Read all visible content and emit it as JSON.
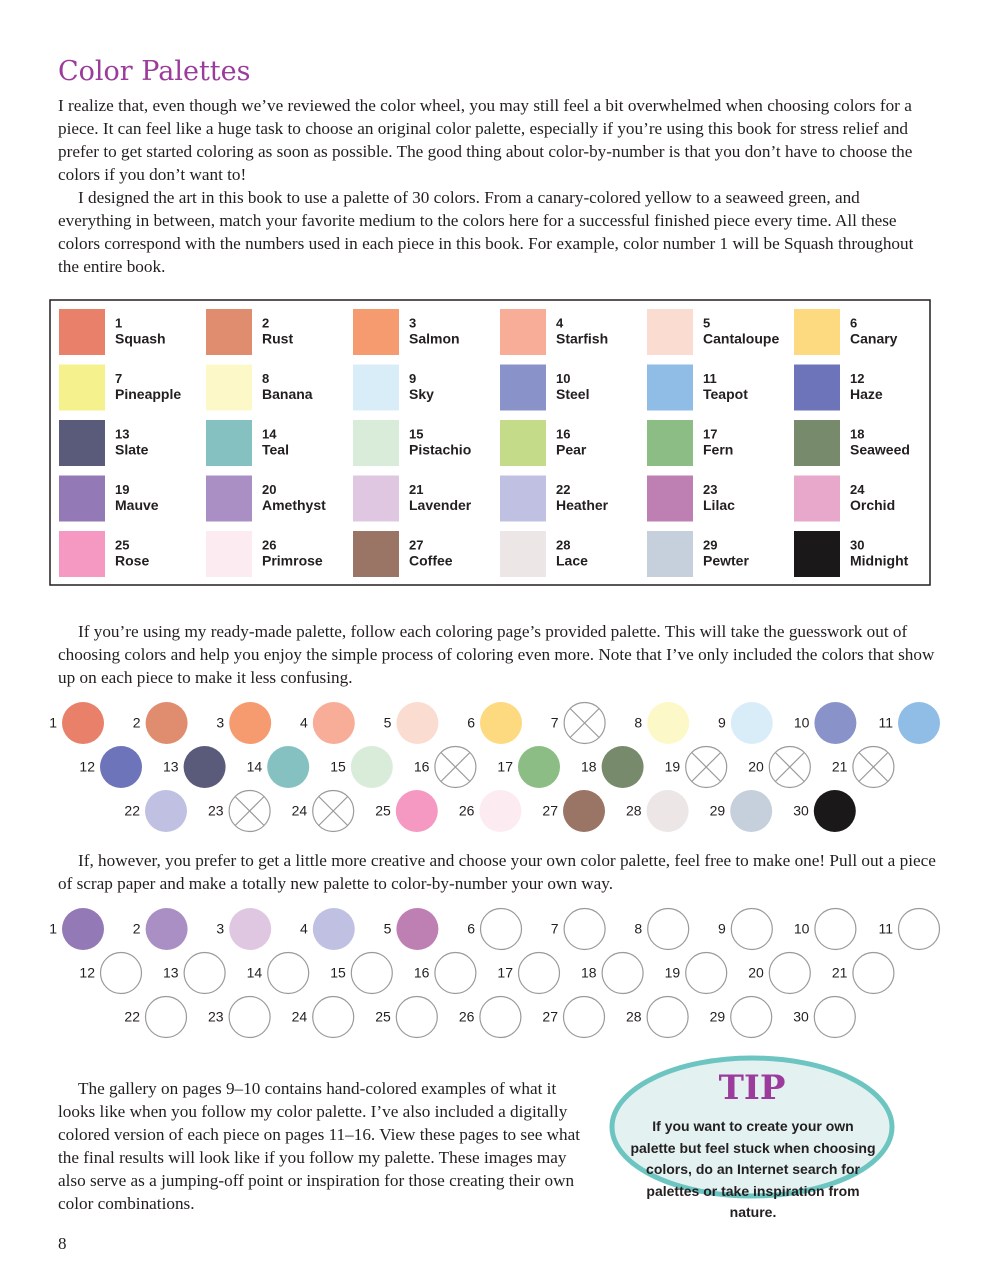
{
  "header": {
    "title": "Color Palettes"
  },
  "paragraphs": [
    "I realize that, even though we’ve reviewed the color wheel, you may still feel a bit overwhelmed when choosing colors for a piece. It can feel like a huge task to choose an original color palette, especially if you’re using this book for stress relief and prefer to get started coloring as soon as possible. The good thing about color-by-number is that you don’t have to choose the colors if you don’t want to!",
    "I designed the art in this book to use a palette of 30 colors. From a canary-colored yellow to a seaweed green, and everything in between, match your favorite medium to the colors here for a successful finished piece every time. All these colors correspond with the numbers used in each piece in this book. For example, color number 1 will be Squash throughout the entire book.",
    "If you’re using my ready-made palette, follow each coloring page’s provided palette. This will take the guesswork out of choosing colors and help you enjoy the simple process of coloring even more. Note that I’ve only included the colors that show up on each piece to make it less confusing.",
    "If, however, you prefer to get a little more creative and choose your own color palette, feel free to make one! Pull out a piece of scrap paper and make a totally new palette to color-by-number your own way.",
    "The gallery on pages 9–10 contains hand-colored examples of what it looks like when you follow my color palette. I’ve also included a digitally colored version of each piece on pages 11–16. View these pages to see what the final results will look like if you follow my palette. These images may also serve as a jumping-off point or inspiration for those creating their own color combinations."
  ],
  "palette": [
    {
      "number": 1,
      "name": "Squash",
      "color": "#e8806a"
    },
    {
      "number": 2,
      "name": "Rust",
      "color": "#e08c6e"
    },
    {
      "number": 3,
      "name": "Salmon",
      "color": "#f69b70"
    },
    {
      "number": 4,
      "name": "Starfish",
      "color": "#f7ad97"
    },
    {
      "number": 5,
      "name": "Cantaloupe",
      "color": "#fbdcd0"
    },
    {
      "number": 6,
      "name": "Canary",
      "color": "#fdd97f"
    },
    {
      "number": 7,
      "name": "Pineapple",
      "color": "#f5f28e"
    },
    {
      "number": 8,
      "name": "Banana",
      "color": "#fdf8c8"
    },
    {
      "number": 9,
      "name": "Sky",
      "color": "#d9edf9"
    },
    {
      "number": 10,
      "name": "Steel",
      "color": "#8a93c9"
    },
    {
      "number": 11,
      "name": "Teapot",
      "color": "#8fbde6"
    },
    {
      "number": 12,
      "name": "Haze",
      "color": "#6e74ba"
    },
    {
      "number": 13,
      "name": "Slate",
      "color": "#5a5a7a"
    },
    {
      "number": 14,
      "name": "Teal",
      "color": "#86c1c2"
    },
    {
      "number": 15,
      "name": "Pistachio",
      "color": "#d9ecd9"
    },
    {
      "number": 16,
      "name": "Pear",
      "color": "#c4dc8a"
    },
    {
      "number": 17,
      "name": "Fern",
      "color": "#8bbd84"
    },
    {
      "number": 18,
      "name": "Seaweed",
      "color": "#778a6b"
    },
    {
      "number": 19,
      "name": "Mauve",
      "color": "#9379b5"
    },
    {
      "number": 20,
      "name": "Amethyst",
      "color": "#a98fc3"
    },
    {
      "number": 21,
      "name": "Lavender",
      "color": "#dfc7e1"
    },
    {
      "number": 22,
      "name": "Heather",
      "color": "#c0c0e2"
    },
    {
      "number": 23,
      "name": "Lilac",
      "color": "#be7fb2"
    },
    {
      "number": 24,
      "name": "Orchid",
      "color": "#e7a8cb"
    },
    {
      "number": 25,
      "name": "Rose",
      "color": "#f599c2"
    },
    {
      "number": 26,
      "name": "Primrose",
      "color": "#fcecf1"
    },
    {
      "number": 27,
      "name": "Coffee",
      "color": "#9a7565"
    },
    {
      "number": 28,
      "name": "Lace",
      "color": "#ece6e6"
    },
    {
      "number": 29,
      "name": "Pewter",
      "color": "#c5d0dc"
    },
    {
      "number": 30,
      "name": "Midnight",
      "color": "#1a1819"
    }
  ],
  "ready_made_circles": [
    {
      "label": 1,
      "color": "#e8806a"
    },
    {
      "label": 2,
      "color": "#e08c6e"
    },
    {
      "label": 3,
      "color": "#f69b70"
    },
    {
      "label": 4,
      "color": "#f7ad97"
    },
    {
      "label": 5,
      "color": "#fbdcd0"
    },
    {
      "label": 6,
      "color": "#fdd97f"
    },
    {
      "label": 7,
      "crossed": true
    },
    {
      "label": 8,
      "color": "#fdf8c8"
    },
    {
      "label": 9,
      "color": "#d9edf9"
    },
    {
      "label": 10,
      "color": "#8a93c9"
    },
    {
      "label": 11,
      "color": "#8fbde6"
    },
    {
      "label": 12,
      "color": "#6e74ba"
    },
    {
      "label": 13,
      "color": "#5a5a7a"
    },
    {
      "label": 14,
      "color": "#86c1c2"
    },
    {
      "label": 15,
      "color": "#d9ecd9"
    },
    {
      "label": 16,
      "crossed": true
    },
    {
      "label": 17,
      "color": "#8bbd84"
    },
    {
      "label": 18,
      "color": "#778a6b"
    },
    {
      "label": 19,
      "crossed": true
    },
    {
      "label": 20,
      "crossed": true
    },
    {
      "label": 21,
      "crossed": true
    },
    {
      "label": 22,
      "color": "#c0c0e2"
    },
    {
      "label": 23,
      "crossed": true
    },
    {
      "label": 24,
      "crossed": true
    },
    {
      "label": 25,
      "color": "#f599c2"
    },
    {
      "label": 26,
      "color": "#fcecf1"
    },
    {
      "label": 27,
      "color": "#9a7565"
    },
    {
      "label": 28,
      "color": "#ece6e6"
    },
    {
      "label": 29,
      "color": "#c5d0dc"
    },
    {
      "label": 30,
      "color": "#1a1819"
    }
  ],
  "own_circles": [
    {
      "label": 1,
      "color": "#9379b5"
    },
    {
      "label": 2,
      "color": "#a98fc3"
    },
    {
      "label": 3,
      "color": "#dfc7e1"
    },
    {
      "label": 4,
      "color": "#c0c0e2"
    },
    {
      "label": 5,
      "color": "#be7fb2"
    },
    {
      "label": 6
    },
    {
      "label": 7
    },
    {
      "label": 8
    },
    {
      "label": 9
    },
    {
      "label": 10
    },
    {
      "label": 11
    },
    {
      "label": 12
    },
    {
      "label": 13
    },
    {
      "label": 14
    },
    {
      "label": 15
    },
    {
      "label": 16
    },
    {
      "label": 17
    },
    {
      "label": 18
    },
    {
      "label": 19
    },
    {
      "label": 20
    },
    {
      "label": 21
    },
    {
      "label": 22
    },
    {
      "label": 23
    },
    {
      "label": 24
    },
    {
      "label": 25
    },
    {
      "label": 26
    },
    {
      "label": 27
    },
    {
      "label": 28
    },
    {
      "label": 29
    },
    {
      "label": 30
    }
  ],
  "tip": {
    "title": "TIP",
    "text": "If you want to create your own palette but feel stuck when choosing colors, do an Internet search for palettes or take inspiration from nature."
  },
  "page_number": "8"
}
